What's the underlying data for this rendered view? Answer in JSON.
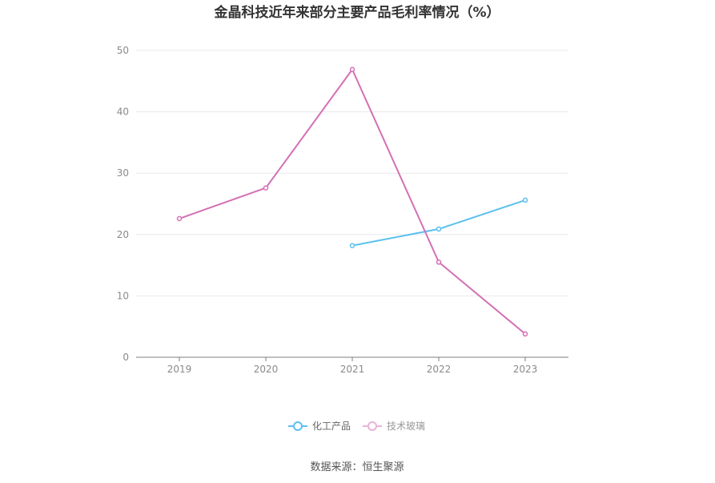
{
  "chart_data": {
    "type": "line",
    "title": "金晶科技近年来部分主要产品毛利率情况（%）",
    "categories": [
      "2019",
      "2020",
      "2021",
      "2022",
      "2023"
    ],
    "ylim": [
      0,
      50
    ],
    "yticks": [
      0,
      10,
      20,
      30,
      40,
      50
    ],
    "grid": true,
    "legend_position": "bottom-center",
    "series": [
      {
        "name": "化工产品",
        "color": "#5bc0f0",
        "values": [
          null,
          null,
          18.2,
          20.9,
          25.6
        ]
      },
      {
        "name": "技术玻璃",
        "color": "#d46fb4",
        "values": [
          22.6,
          27.6,
          46.9,
          15.5,
          3.8
        ]
      }
    ]
  },
  "source": "数据来源：恒生聚源"
}
